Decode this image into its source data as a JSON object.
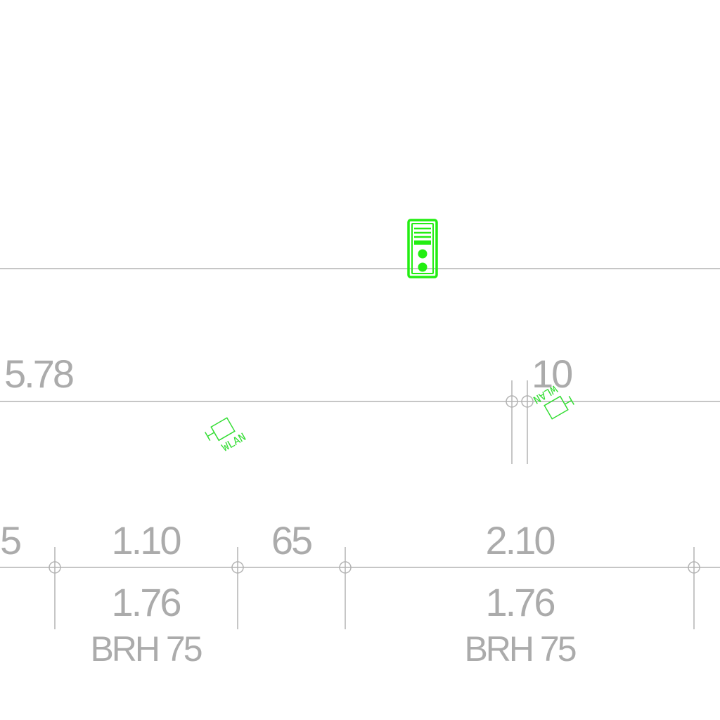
{
  "labels": {
    "room_width": "5.78",
    "room_partial": "10",
    "dim_left_partial": "5",
    "dim_1": "1.10",
    "dim_2": "65",
    "dim_3": "2.10",
    "window_width_1": "1.76",
    "window_width_2": "1.76",
    "sill_height_1": "BRH 75",
    "sill_height_2": "BRH 75"
  },
  "symbols": {
    "wlan_1": "WLAN",
    "wlan_2": "WLAN",
    "network_device_icon": "server-rack-icon"
  },
  "colors": {
    "dimension_lines": "#b3b3b3",
    "dimension_text": "#ababab",
    "device_symbol": "#22ee11",
    "wlan_symbol": "#33dd33",
    "background": "#ffffff"
  }
}
